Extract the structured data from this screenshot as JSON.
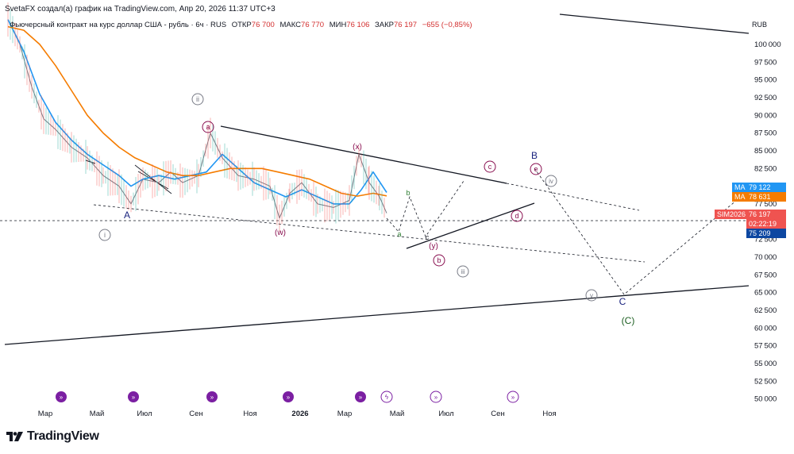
{
  "header": {
    "author_line": "SvetaFX создал(а) график на TradingView.com, Апр 20, 2026 11:37 UTC+3"
  },
  "legend": {
    "instrument": "Фьючерсный контракт на курс доллар США - рубль · 6ч · RUS",
    "open_label": "ОТКР",
    "open_value": "76 700",
    "high_label": "МАКС",
    "high_value": "76 770",
    "low_label": "МИН",
    "low_value": "76 106",
    "close_label": "ЗАКР",
    "close_value": "76 197",
    "change": "−655 (−0,85%)"
  },
  "currency": "RUB",
  "price_tags": {
    "ma1_label": "MA",
    "ma1_value": "79 122",
    "ma1_color": "#2196f3",
    "ma2_label": "MA",
    "ma2_value": "78 631",
    "ma2_color": "#f57c00",
    "symbol_label": "SIM2026",
    "last_value": "76 197",
    "countdown": "02:22:19",
    "last_color": "#ef5350",
    "level_value": "75 209",
    "level_color": "#0d47a1"
  },
  "branding": {
    "logo_text": "TradingView"
  },
  "chart_data": {
    "type": "line",
    "title": "Фьючерсный контракт на курс доллар США - рубль",
    "x_tick_labels": [
      "Мар",
      "Май",
      "Июл",
      "Сен",
      "Ноя",
      "2026",
      "Мар",
      "Май",
      "Июл",
      "Сен",
      "Ноя"
    ],
    "y_ticks": [
      50000,
      52500,
      55000,
      57500,
      60000,
      62500,
      65000,
      67500,
      70000,
      72500,
      75000,
      77500,
      80000,
      82500,
      85000,
      87500,
      90000,
      92500,
      95000,
      97500,
      100000
    ],
    "ylim": [
      48500,
      103800
    ],
    "series": [
      {
        "name": "Цена",
        "color": "#787b86",
        "x": [
          10,
          25,
          40,
          55,
          70,
          90,
          110,
          130,
          150,
          165,
          180,
          200,
          215,
          230,
          250,
          265,
          280,
          300,
          320,
          340,
          352,
          365,
          380,
          400,
          420,
          440,
          452,
          465,
          478,
          487
        ],
        "values": [
          103500,
          100000,
          94000,
          89500,
          88000,
          85500,
          84000,
          81500,
          80000,
          77500,
          81000,
          80500,
          82000,
          80500,
          81500,
          87500,
          84000,
          81500,
          81000,
          80000,
          75500,
          79000,
          80500,
          77500,
          77000,
          78000,
          84500,
          80500,
          78500,
          76197
        ]
      },
      {
        "name": "MA (синяя)",
        "color": "#2196f3",
        "x": [
          10,
          30,
          50,
          70,
          90,
          110,
          130,
          150,
          165,
          180,
          200,
          220,
          240,
          260,
          280,
          300,
          320,
          340,
          360,
          380,
          400,
          420,
          440,
          455,
          470,
          487
        ],
        "values": [
          103500,
          99000,
          93000,
          89000,
          86500,
          84500,
          83000,
          81500,
          80000,
          81000,
          81500,
          81000,
          81500,
          82000,
          84500,
          82500,
          80500,
          79500,
          78500,
          79500,
          78500,
          77500,
          77500,
          79500,
          82000,
          79122
        ]
      },
      {
        "name": "MA (оранжевая)",
        "color": "#f57c00",
        "x": [
          10,
          30,
          50,
          70,
          90,
          110,
          130,
          150,
          170,
          190,
          210,
          230,
          250,
          270,
          290,
          310,
          330,
          350,
          370,
          390,
          410,
          430,
          450,
          470,
          487
        ],
        "values": [
          102500,
          102000,
          100000,
          97000,
          93500,
          90000,
          87500,
          85500,
          84000,
          83000,
          82000,
          81500,
          81500,
          82000,
          82500,
          82500,
          82500,
          82000,
          81500,
          81000,
          80000,
          79000,
          78600,
          79000,
          78631
        ]
      }
    ],
    "wave_labels": [
      "A",
      "i",
      "ii",
      "a",
      "(w)",
      "(x)",
      "a",
      "b",
      "c",
      "(y)",
      "b",
      "iii",
      "c",
      "d",
      "B",
      "e",
      "iv",
      "v",
      "C",
      "(C)"
    ]
  }
}
